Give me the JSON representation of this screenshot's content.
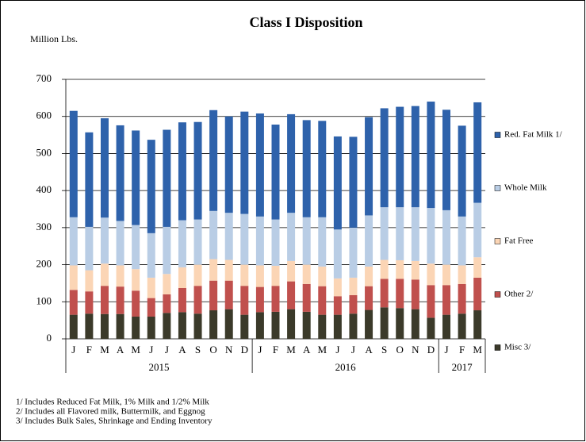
{
  "chart_data": {
    "type": "stacked-bar",
    "title": "Class I Disposition",
    "y_label": "Million Lbs.",
    "categories": [
      "J",
      "F",
      "M",
      "A",
      "M",
      "J",
      "J",
      "A",
      "S",
      "O",
      "N",
      "D",
      "J",
      "F",
      "M",
      "A",
      "M",
      "J",
      "J",
      "A",
      "S",
      "O",
      "N",
      "D",
      "J",
      "F",
      "M"
    ],
    "x_groups": [
      {
        "label": "2015",
        "size": 12
      },
      {
        "label": "2016",
        "size": 12
      },
      {
        "label": "2017",
        "size": 3
      }
    ],
    "series": [
      {
        "name": "Misc 3/",
        "color": "#3b3a2a",
        "values": [
          65,
          68,
          67,
          67,
          60,
          60,
          70,
          72,
          68,
          77,
          80,
          65,
          72,
          73,
          80,
          73,
          65,
          65,
          68,
          78,
          85,
          83,
          80,
          57,
          65,
          68,
          77
        ]
      },
      {
        "name": "Other 2/",
        "color": "#c0504d",
        "values": [
          67,
          60,
          76,
          74,
          70,
          50,
          50,
          65,
          75,
          80,
          77,
          78,
          68,
          70,
          75,
          75,
          77,
          50,
          50,
          64,
          77,
          79,
          80,
          88,
          80,
          80,
          88
        ]
      },
      {
        "name": "Fat Free",
        "color": "#fbd5b5",
        "values": [
          66,
          57,
          60,
          57,
          58,
          55,
          55,
          56,
          57,
          58,
          56,
          57,
          58,
          54,
          55,
          52,
          53,
          48,
          47,
          53,
          51,
          50,
          50,
          58,
          55,
          50,
          55
        ]
      },
      {
        "name": "Whole Milk",
        "color": "#b9cde5",
        "values": [
          130,
          117,
          124,
          120,
          119,
          120,
          127,
          127,
          122,
          130,
          127,
          137,
          132,
          125,
          130,
          128,
          133,
          132,
          135,
          138,
          142,
          143,
          145,
          150,
          147,
          132,
          147
        ]
      },
      {
        "name": "Red. Fat Milk 1/",
        "color": "#2e62ab",
        "values": [
          287,
          255,
          268,
          258,
          255,
          252,
          262,
          264,
          263,
          272,
          260,
          276,
          278,
          256,
          266,
          262,
          260,
          251,
          245,
          265,
          267,
          271,
          273,
          287,
          271,
          245,
          271
        ]
      }
    ],
    "ylim": [
      0,
      700
    ],
    "yticks": [
      0,
      100,
      200,
      300,
      400,
      500,
      600,
      700
    ],
    "grid": true,
    "legend": "right",
    "footnotes": [
      "1/  Includes Reduced Fat Milk, 1% Milk and 1/2% Milk",
      "2/  Includes all Flavored milk, Buttermilk, and Eggnog",
      "3/  Includes  Bulk Sales, Shrinkage and Ending Inventory"
    ]
  }
}
